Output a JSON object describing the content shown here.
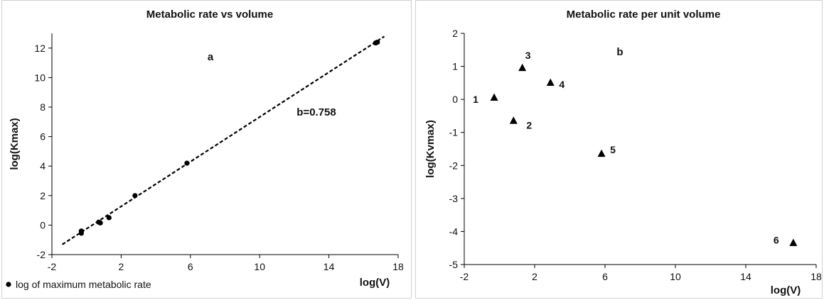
{
  "charts": [
    {
      "type": "scatter",
      "title": "Metabolic rate vs volume",
      "xlabel": "log(V)",
      "ylabel": "log(Kmax)",
      "xlim": [
        -2,
        18
      ],
      "ylim": [
        -2,
        13
      ],
      "xticks": [
        -2,
        2,
        6,
        10,
        14,
        18
      ],
      "yticks": [
        -2,
        0,
        2,
        4,
        6,
        8,
        10,
        12
      ],
      "panel_letter": "a",
      "annotation": "b=0.758",
      "legend": {
        "label": "log of maximum metabolic rate",
        "position": "bottom-left"
      },
      "series": [
        {
          "name": "log of maximum metabolic rate",
          "marker": "circle",
          "x": [
            -0.3,
            -0.3,
            0.7,
            0.8,
            1.3,
            2.8,
            5.8,
            16.7,
            16.8
          ],
          "y": [
            -0.4,
            -0.55,
            0.2,
            0.15,
            0.5,
            2.0,
            4.2,
            12.35,
            12.4
          ]
        }
      ],
      "trendline": {
        "slope": 0.758,
        "intercept": -0.25,
        "x": [
          -1.4,
          17.2
        ],
        "style": "dashed"
      }
    },
    {
      "type": "scatter",
      "title": "Metabolic rate per unit volume",
      "xlabel": "log(V)",
      "ylabel": "log(Kvmax)",
      "xlim": [
        -2,
        18
      ],
      "ylim": [
        -5,
        2
      ],
      "xticks": [
        -2,
        2,
        6,
        10,
        14,
        18
      ],
      "yticks": [
        -5,
        -4,
        -3,
        -2,
        -1,
        0,
        1,
        2
      ],
      "panel_letter": "b",
      "series": [
        {
          "marker": "triangle",
          "x": [
            -0.3,
            0.8,
            1.3,
            2.9,
            5.8,
            16.7
          ],
          "y": [
            0.05,
            -0.65,
            0.95,
            0.5,
            -1.65,
            -4.35
          ],
          "labels": [
            "1",
            "2",
            "3",
            "4",
            "5",
            "6"
          ]
        }
      ]
    }
  ]
}
